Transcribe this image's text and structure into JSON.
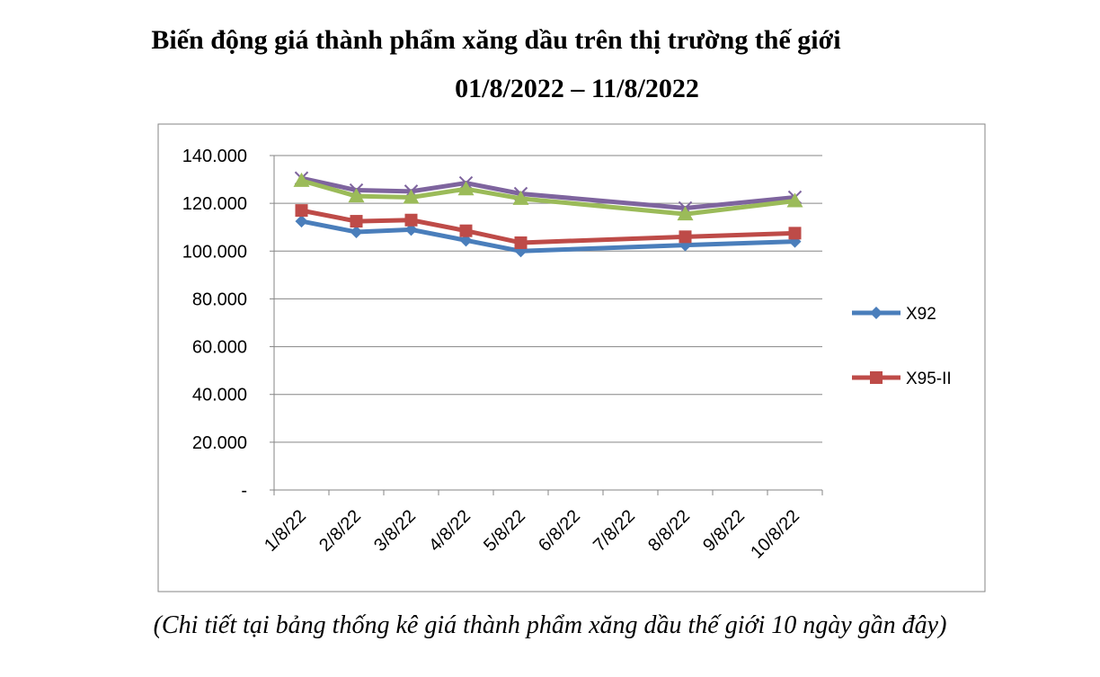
{
  "title_line1": "Biến động giá thành phẩm xăng dầu trên thị trường thế giới",
  "title_line2": "01/8/2022 – 11/8/2022",
  "caption": "(Chi tiết tại bảng thống kê giá thành phẩm xăng dầu thế giới 10 ngày gần đây)",
  "chart_data": {
    "type": "line",
    "categories": [
      "1/8/22",
      "2/8/22",
      "3/8/22",
      "4/8/22",
      "5/8/22",
      "6/8/22",
      "7/8/22",
      "8/8/22",
      "9/8/22",
      "10/8/22"
    ],
    "ylim": [
      0,
      140000
    ],
    "y_ticks": [
      "-",
      "20.000",
      "40.000",
      "60.000",
      "80.000",
      "100.000",
      "120.000",
      "140.000"
    ],
    "grid": true,
    "legend_position": "right",
    "series": [
      {
        "name": "X92",
        "color": "#4A7EBB",
        "marker": "diamond",
        "values": [
          112500,
          108000,
          109000,
          104500,
          100000,
          null,
          null,
          102500,
          null,
          104000
        ]
      },
      {
        "name": "X95-II",
        "color": "#BE4B48",
        "marker": "square",
        "values": [
          117000,
          112500,
          113000,
          108500,
          103500,
          null,
          null,
          106000,
          null,
          107500
        ]
      },
      {
        "color": "#9BBB59",
        "marker": "triangle",
        "values": [
          129500,
          123000,
          122500,
          126000,
          122000,
          null,
          null,
          115500,
          null,
          121000
        ]
      },
      {
        "color": "#7E649E",
        "marker": "x",
        "values": [
          130500,
          125500,
          125000,
          128500,
          124000,
          null,
          null,
          118000,
          null,
          122500
        ]
      }
    ]
  }
}
